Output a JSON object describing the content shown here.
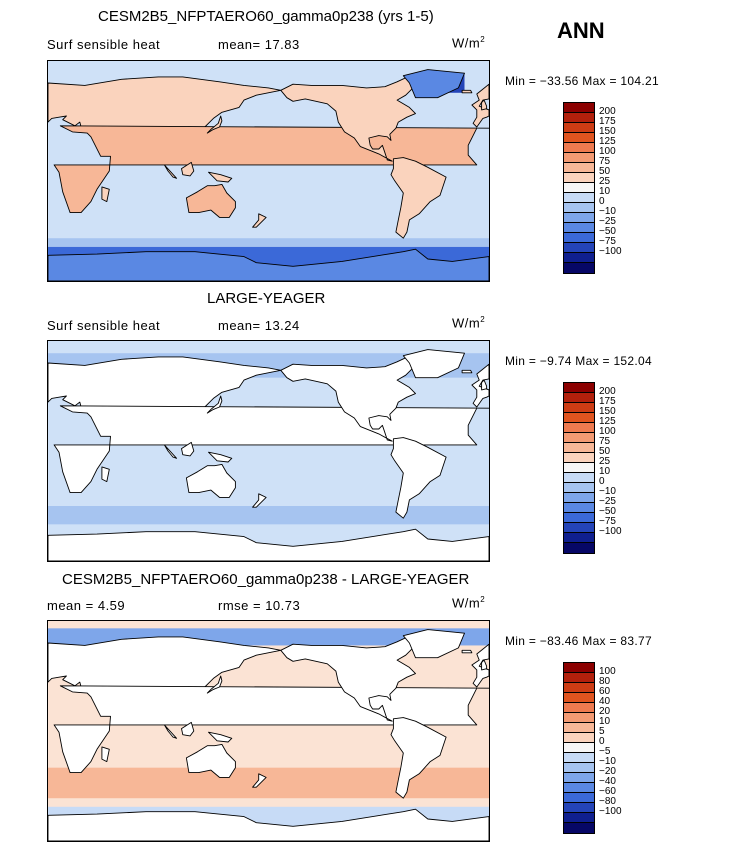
{
  "season": "ANN",
  "panels": [
    {
      "title": "CESM2B5_NFPTAERO60_gamma0p238 (yrs 1-5)",
      "left_label": "Surf sensible heat",
      "mid_label": "mean=  17.83",
      "units": "W/m",
      "units_sup": "2",
      "minmax": "Min = −33.56 Max = 104.21",
      "ocean_color": "#cfe1f7",
      "cbar_colors": [
        "#8b0000",
        "#b2200c",
        "#cd3c14",
        "#e0541f",
        "#ee7a4f",
        "#f39a73",
        "#f7b797",
        "#fad3bd",
        "#f6f6f6",
        "#c7dbf6",
        "#a6c4f0",
        "#7ea6ea",
        "#5a88e3",
        "#3b69d8",
        "#2444b8",
        "#0f1f8f",
        "#060766"
      ],
      "cbar_labels": [
        "200",
        "175",
        "150",
        "125",
        "100",
        "75",
        "50",
        "25",
        "10",
        "0",
        "−10",
        "−25",
        "−50",
        "−75",
        "−100"
      ]
    },
    {
      "title": "LARGE-YEAGER",
      "left_label": "Surf sensible heat",
      "mid_label": "mean=  13.24",
      "units": "W/m",
      "units_sup": "2",
      "minmax": "Min =  −9.74 Max = 152.04",
      "ocean_color": "#cfe1f7",
      "cbar_colors": [
        "#8b0000",
        "#b2200c",
        "#cd3c14",
        "#e0541f",
        "#ee7a4f",
        "#f39a73",
        "#f7b797",
        "#fad3bd",
        "#f6f6f6",
        "#c7dbf6",
        "#a6c4f0",
        "#7ea6ea",
        "#5a88e3",
        "#3b69d8",
        "#2444b8",
        "#0f1f8f",
        "#060766"
      ],
      "cbar_labels": [
        "200",
        "175",
        "150",
        "125",
        "100",
        "75",
        "50",
        "25",
        "10",
        "0",
        "−10",
        "−25",
        "−50",
        "−75",
        "−100"
      ]
    },
    {
      "title": "CESM2B5_NFPTAERO60_gamma0p238 - LARGE-YEAGER",
      "left_label": "mean =   4.59",
      "mid_label": "rmse =  10.73",
      "units": "W/m",
      "units_sup": "2",
      "minmax": "Min = −83.46 Max =  83.77",
      "ocean_color": "#fbe3d4",
      "cbar_colors": [
        "#8b0000",
        "#b2200c",
        "#cd3c14",
        "#e0541f",
        "#ee7a4f",
        "#f39a73",
        "#f7b797",
        "#fad3bd",
        "#f6f6f6",
        "#c7dbf6",
        "#a6c4f0",
        "#7ea6ea",
        "#5a88e3",
        "#3b69d8",
        "#2444b8",
        "#0f1f8f",
        "#060766"
      ],
      "cbar_labels": [
        "100",
        "80",
        "60",
        "40",
        "20",
        "10",
        "5",
        "0",
        "−5",
        "−10",
        "−20",
        "−40",
        "−60",
        "−80",
        "−100"
      ]
    }
  ]
}
